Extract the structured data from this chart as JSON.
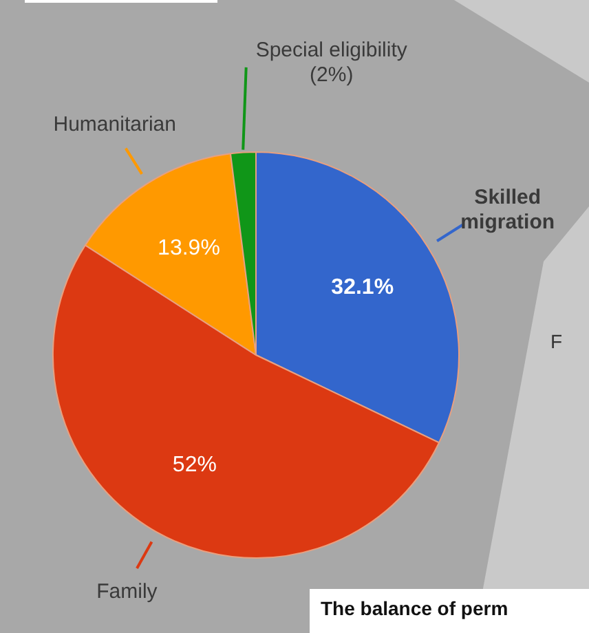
{
  "chart_data": {
    "type": "pie",
    "categories": [
      "Skilled migration",
      "Family",
      "Humanitarian",
      "Special eligibility"
    ],
    "values": [
      32.1,
      52,
      13.9,
      2
    ],
    "colors": [
      "#3366cc",
      "#dc3912",
      "#ff9900",
      "#109618"
    ],
    "value_labels": [
      "32.1%",
      "52%",
      "13.9%",
      "(2%)"
    ],
    "legend": false,
    "annotations": [
      "F",
      "The balance of perm"
    ]
  }
}
